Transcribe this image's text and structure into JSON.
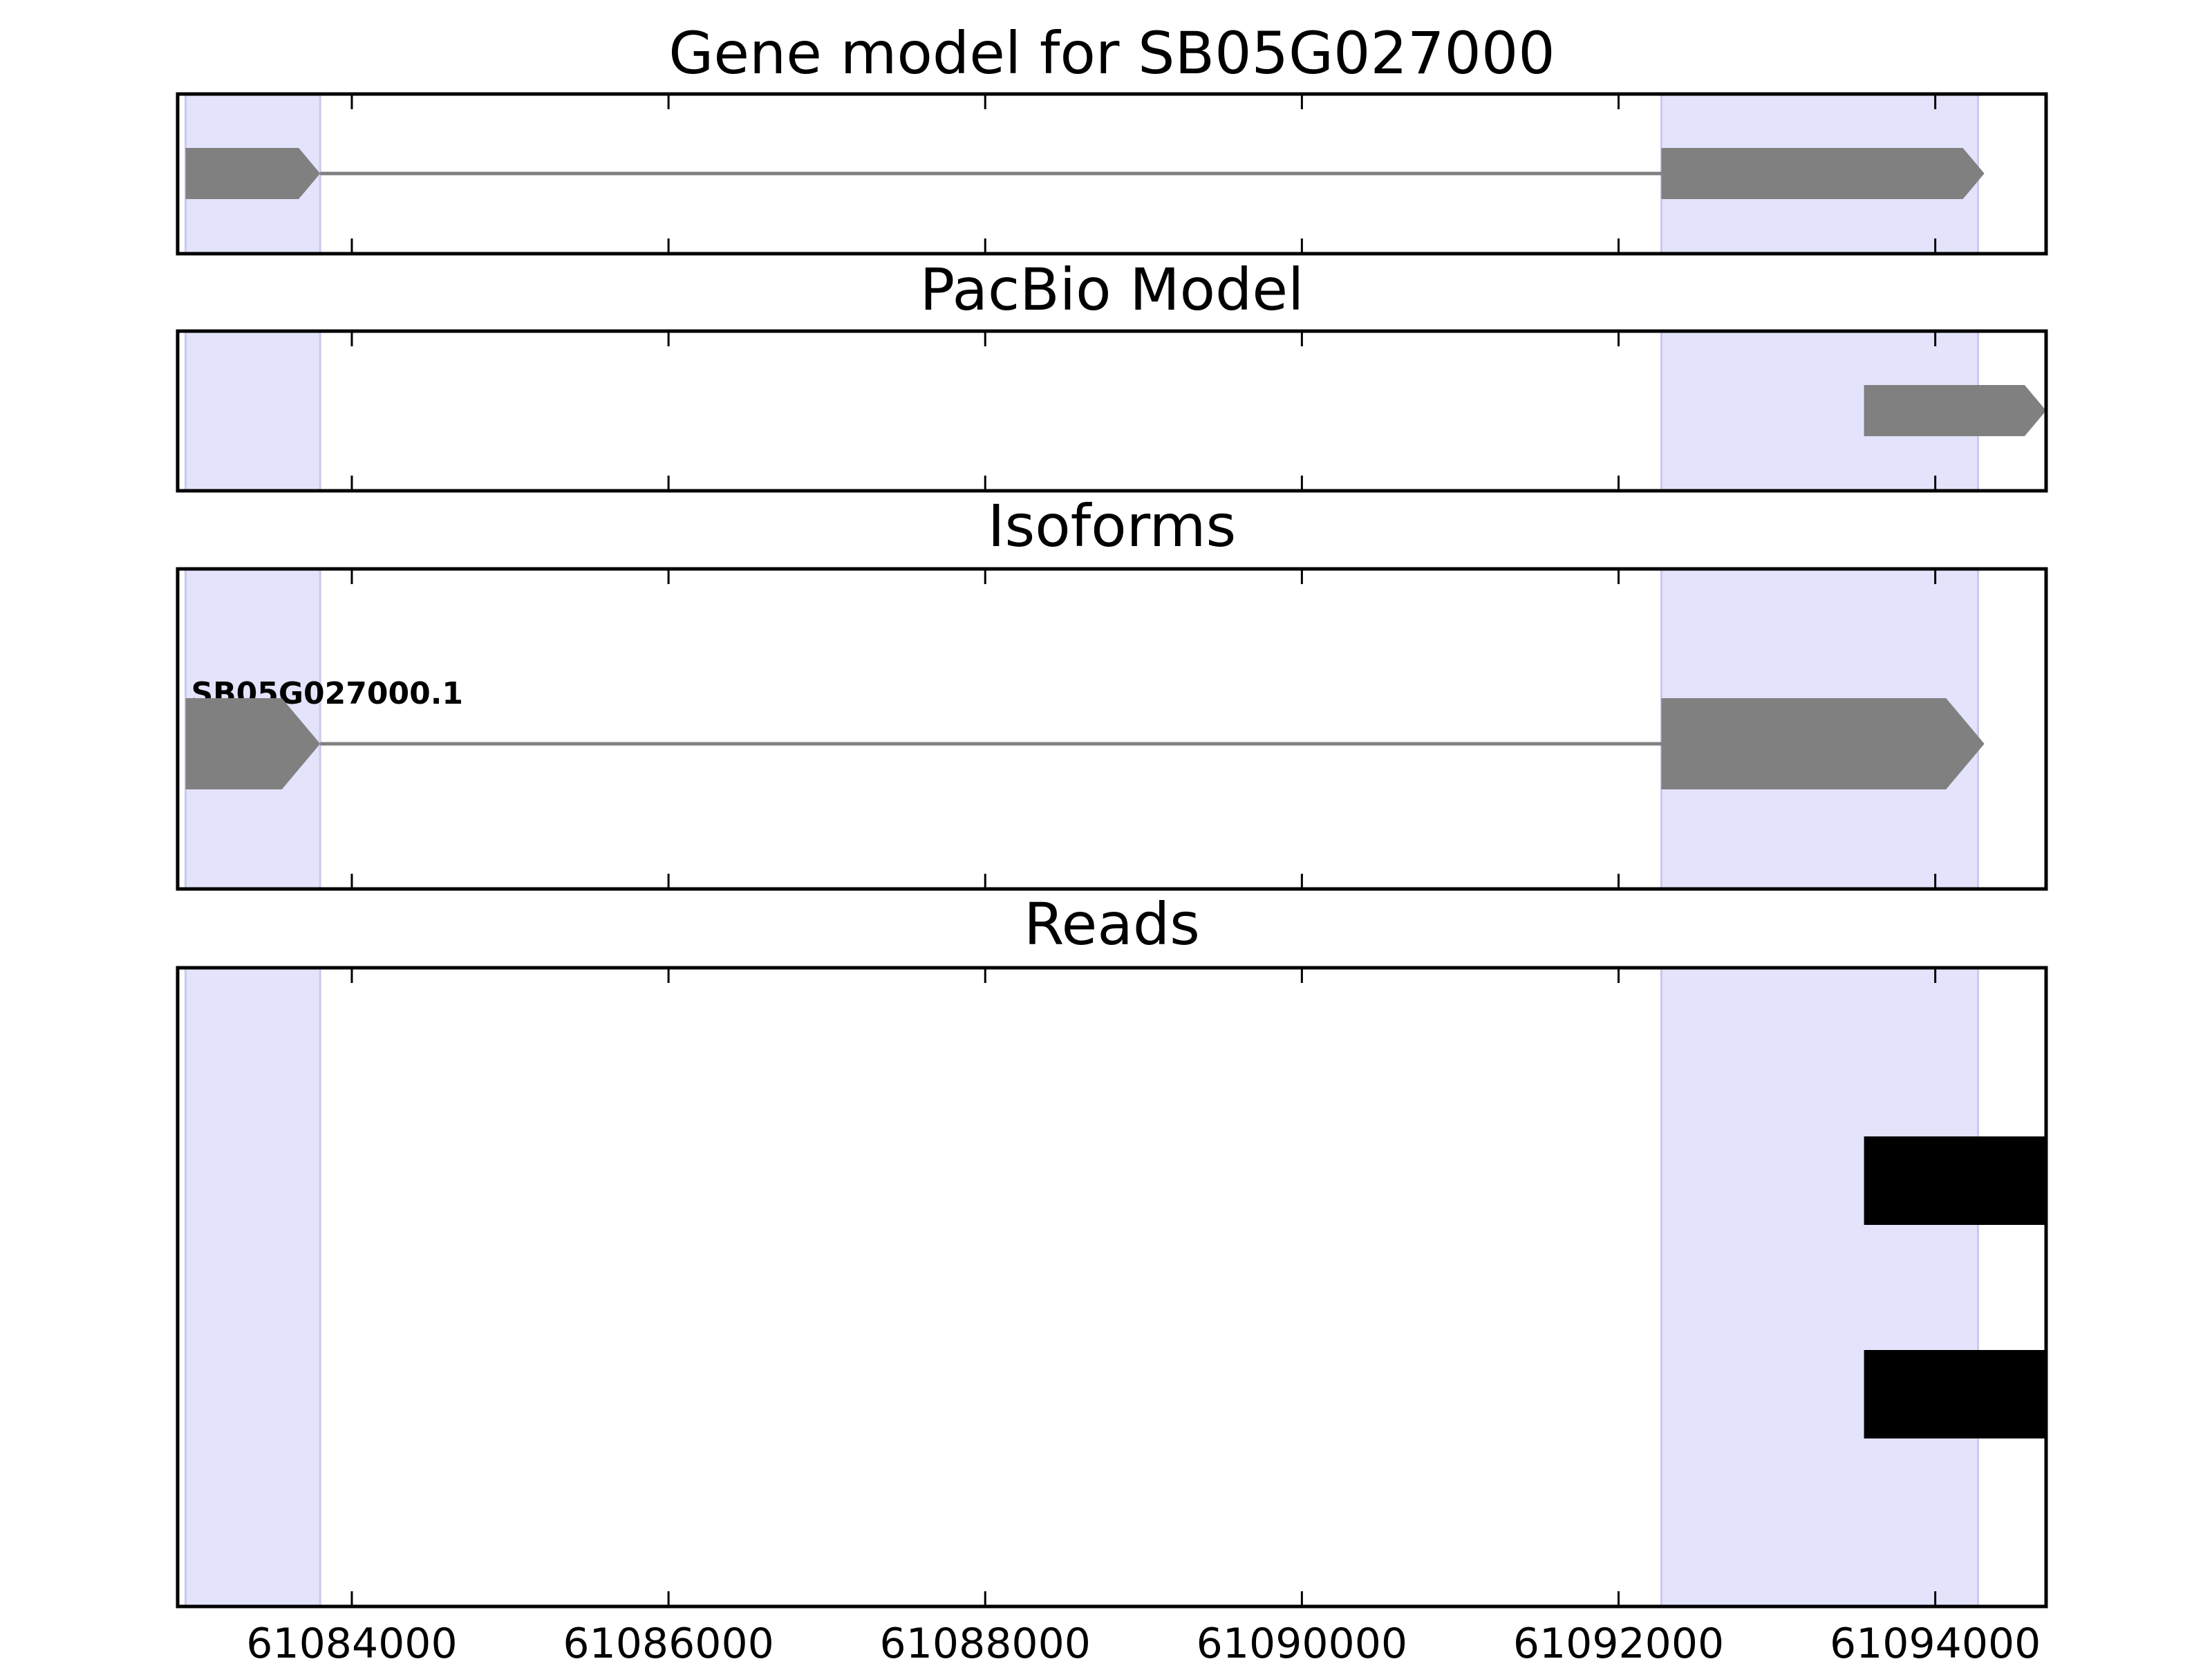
{
  "chart_data": {
    "type": "gene_track",
    "panels": [
      {
        "title": "Gene model for SB05G027000",
        "features": [
          {
            "kind": "intron",
            "start": 61083800,
            "end": 61092270
          },
          {
            "kind": "exon",
            "start": 61082950,
            "end": 61083800,
            "strand": "+"
          },
          {
            "kind": "exon",
            "start": 61092270,
            "end": 61094310,
            "strand": "+"
          }
        ]
      },
      {
        "title": "PacBio Model",
        "features": [
          {
            "kind": "exon",
            "start": 61093550,
            "end": 61094700,
            "strand": "+"
          }
        ]
      },
      {
        "title": "Isoforms",
        "features": [
          {
            "kind": "label",
            "text": "SB05G027000.1",
            "start": 61082950
          },
          {
            "kind": "intron",
            "start": 61083800,
            "end": 61092270
          },
          {
            "kind": "exon",
            "start": 61082950,
            "end": 61083800,
            "strand": "+"
          },
          {
            "kind": "exon",
            "start": 61092270,
            "end": 61094310,
            "strand": "+"
          }
        ]
      },
      {
        "title": "Reads",
        "features": [
          {
            "kind": "read",
            "start": 61093550,
            "end": 61094690,
            "row": 0
          },
          {
            "kind": "read",
            "start": 61093550,
            "end": 61094690,
            "row": 1
          }
        ]
      }
    ],
    "exon_highlights": [
      {
        "start": 61082950,
        "end": 61083800
      },
      {
        "start": 61092270,
        "end": 61094270
      }
    ],
    "xlim": [
      61082900,
      61094700
    ],
    "x_ticks": [
      61084000,
      61086000,
      61088000,
      61090000,
      61092000,
      61094000
    ],
    "x_tick_labels": [
      "61084000",
      "61086000",
      "61088000",
      "61090000",
      "61092000",
      "61094000"
    ],
    "colors": {
      "exon": "#808080",
      "intron": "#808080",
      "read": "#000000",
      "highlight": "#e3e3fc",
      "highlight_edge": "#c9c9ec",
      "frame": "#000000"
    }
  }
}
